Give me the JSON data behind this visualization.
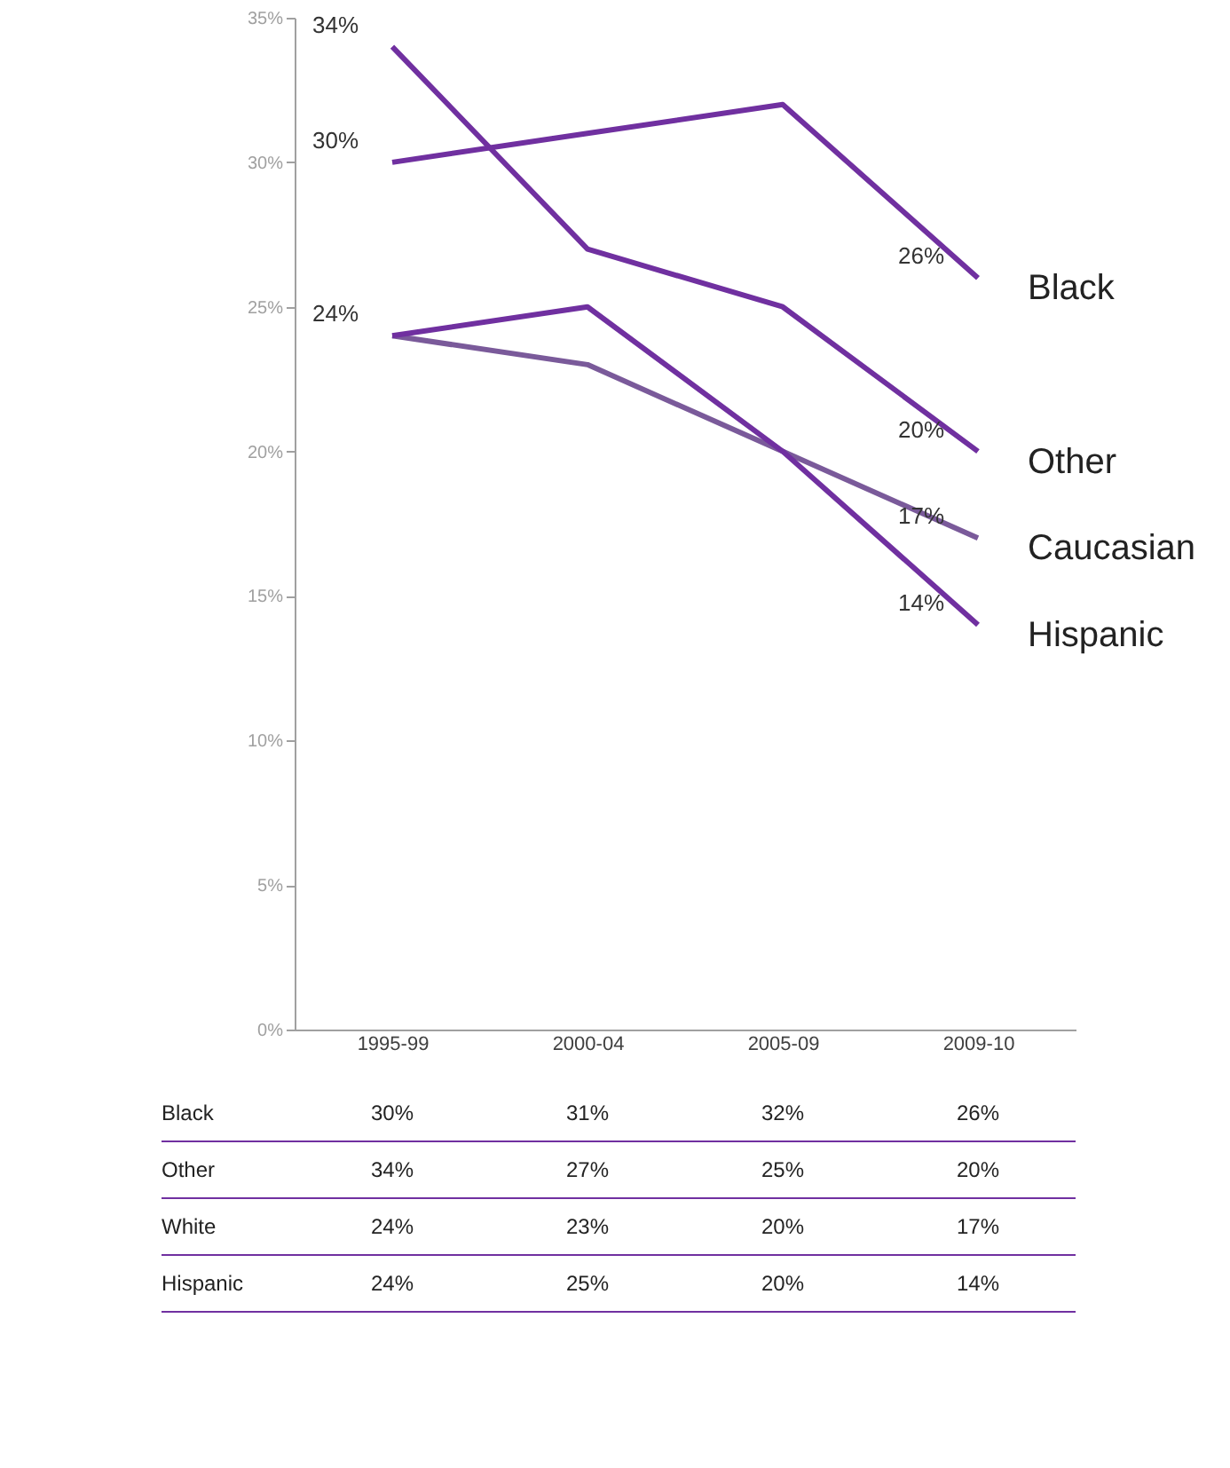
{
  "chart_data": {
    "type": "line",
    "categories": [
      "1995-99",
      "2000-04",
      "2005-09",
      "2009-10"
    ],
    "series": [
      {
        "name": "Black",
        "color": "#7030a0",
        "values": [
          30,
          31,
          32,
          26
        ],
        "value_labels": [
          "30%",
          "31%",
          "32%",
          "26%"
        ]
      },
      {
        "name": "Other",
        "color": "#7030a0",
        "values": [
          34,
          27,
          25,
          20
        ],
        "value_labels": [
          "34%",
          "27%",
          "25%",
          "20%"
        ]
      },
      {
        "name": "Caucasian",
        "color": "#7a5a9a",
        "values": [
          24,
          23,
          20,
          17
        ],
        "value_labels": [
          "24%",
          "23%",
          "20%",
          "17%"
        ]
      },
      {
        "name": "Hispanic",
        "color": "#7030a0",
        "values": [
          24,
          25,
          20,
          14
        ],
        "value_labels": [
          "24%",
          "25%",
          "20%",
          "14%"
        ]
      }
    ],
    "ylim": [
      0,
      35
    ],
    "yticks": [
      {
        "value": 0,
        "label": "0%"
      },
      {
        "value": 5,
        "label": "5%"
      },
      {
        "value": 10,
        "label": "10%"
      },
      {
        "value": 15,
        "label": "15%"
      },
      {
        "value": 20,
        "label": "20%"
      },
      {
        "value": 25,
        "label": "25%"
      },
      {
        "value": 30,
        "label": "30%"
      },
      {
        "value": 35,
        "label": "35%"
      }
    ],
    "grid": false,
    "legend": false,
    "marker": "none",
    "line_style": "solid",
    "annotations": [
      "Black",
      "Other",
      "White",
      "Hispanic",
      {
        "text": "30%",
        "x": "1995-99",
        "y": 30
      },
      {
        "text": "34%",
        "x": "1995-99",
        "y": 34
      },
      {
        "text": "24%",
        "x": "1995-99",
        "y": 24
      },
      {
        "text": "26%",
        "x": "2009-10",
        "y": 26
      },
      {
        "text": "20%",
        "x": "2009-10",
        "y": 20
      },
      {
        "text": "17%",
        "x": "2009-10",
        "y": 17
      },
      {
        "text": "14%",
        "x": "2009-10",
        "y": 14
      }
    ]
  }
}
